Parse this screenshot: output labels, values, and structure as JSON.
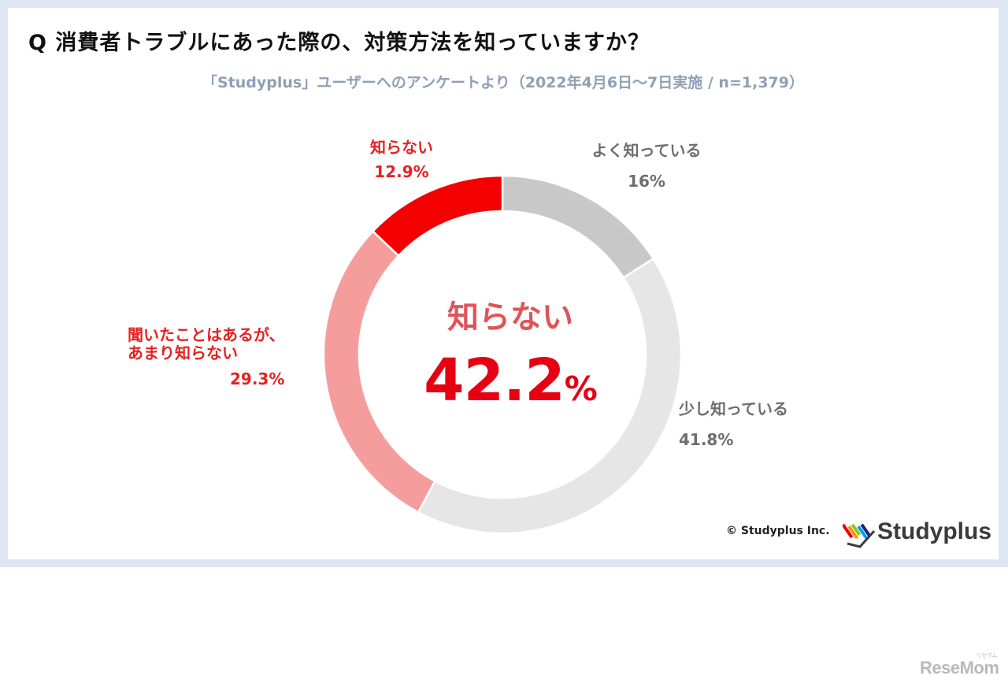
{
  "question_title": "Q 消費者トラブルにあった際の、対策方法を知っていますか？",
  "subtitle": "「Studyplus」ユーザーへのアンケートより（2022年4月6日〜7日実施 / n=1,379）",
  "center": {
    "label": "知らない",
    "value": "42.2",
    "unit": "%"
  },
  "chart_data": {
    "type": "pie",
    "donut": true,
    "categories": [
      "よく知っている",
      "少し知っている",
      "聞いたことはあるが、あまり知らない",
      "知らない"
    ],
    "values": [
      16.0,
      41.8,
      29.3,
      12.9
    ],
    "colors": [
      "#c8c8c8",
      "#e6e6e6",
      "#f59d9d",
      "#f40000"
    ],
    "data_labels": [
      {
        "lines": [
          "よく知っている"
        ],
        "value": "16%"
      },
      {
        "lines": [
          "少し知っている"
        ],
        "value": "41.8%"
      },
      {
        "lines": [
          "聞いたことはあるが、",
          "あまり知らない"
        ],
        "value": "29.3%"
      },
      {
        "lines": [
          "知らない"
        ],
        "value": "12.9%"
      }
    ],
    "start": "top",
    "direction": "clockwise"
  },
  "footer": {
    "copyright": "© Studyplus Inc.",
    "brand": "Studyplus",
    "brand_mark_colors": [
      "#e60012",
      "#f39800",
      "#8fc31f",
      "#00a0e9",
      "#1d2088"
    ]
  },
  "watermark": {
    "text": "ReseMom",
    "small": "リセマム"
  }
}
